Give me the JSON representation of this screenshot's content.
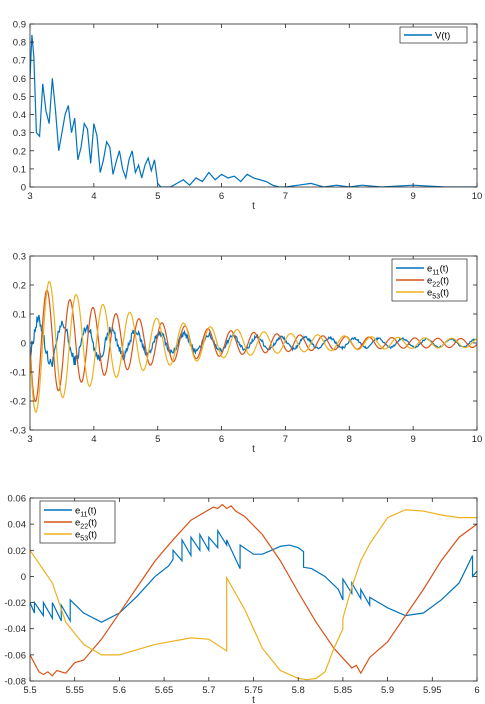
{
  "chart_data": [
    {
      "type": "line",
      "xlabel": "t",
      "ylabel": "",
      "xlim": [
        3,
        10
      ],
      "ylim": [
        0,
        0.9
      ],
      "xticks": [
        "3",
        "4",
        "5",
        "6",
        "7",
        "8",
        "9",
        "10"
      ],
      "yticks": [
        "0",
        "0.1",
        "0.2",
        "0.3",
        "0.4",
        "0.5",
        "0.6",
        "0.7",
        "0.8",
        "0.9"
      ],
      "legend_position": "top-right",
      "grid": false,
      "series": [
        {
          "name": "V(t)",
          "color": "#0072BD",
          "x": [
            3.0,
            3.03,
            3.06,
            3.1,
            3.15,
            3.2,
            3.25,
            3.3,
            3.35,
            3.4,
            3.45,
            3.5,
            3.55,
            3.6,
            3.65,
            3.7,
            3.75,
            3.8,
            3.85,
            3.9,
            3.95,
            4.0,
            4.05,
            4.1,
            4.15,
            4.2,
            4.25,
            4.3,
            4.35,
            4.4,
            4.45,
            4.5,
            4.55,
            4.6,
            4.65,
            4.7,
            4.75,
            4.8,
            4.85,
            4.9,
            4.95,
            5.0,
            5.05,
            5.1,
            5.2,
            5.3,
            5.4,
            5.5,
            5.6,
            5.7,
            5.8,
            5.9,
            6.0,
            6.1,
            6.2,
            6.3,
            6.4,
            6.5,
            6.6,
            6.7,
            6.8,
            6.9,
            7.0,
            7.2,
            7.4,
            7.6,
            7.8,
            8.0,
            8.2,
            8.5,
            9.0,
            9.5,
            10.0
          ],
          "y": [
            0.6,
            0.84,
            0.72,
            0.3,
            0.28,
            0.57,
            0.42,
            0.35,
            0.6,
            0.42,
            0.2,
            0.3,
            0.4,
            0.45,
            0.3,
            0.38,
            0.15,
            0.22,
            0.35,
            0.32,
            0.13,
            0.35,
            0.28,
            0.08,
            0.15,
            0.25,
            0.22,
            0.07,
            0.14,
            0.2,
            0.1,
            0.05,
            0.15,
            0.2,
            0.08,
            0.12,
            0.05,
            0.12,
            0.16,
            0.09,
            0.15,
            0.02,
            0.0,
            0.0,
            0.0,
            0.02,
            0.04,
            0.01,
            0.05,
            0.03,
            0.08,
            0.04,
            0.07,
            0.05,
            0.06,
            0.03,
            0.07,
            0.05,
            0.04,
            0.03,
            0.01,
            0.0,
            0.0,
            0.01,
            0.02,
            0.0,
            0.01,
            0.0,
            0.01,
            0.0,
            0.01,
            0.0,
            0.0
          ]
        }
      ]
    },
    {
      "type": "line",
      "xlabel": "t",
      "ylabel": "",
      "xlim": [
        3,
        10
      ],
      "ylim": [
        -0.3,
        0.3
      ],
      "xticks": [
        "3",
        "4",
        "5",
        "6",
        "7",
        "8",
        "9",
        "10"
      ],
      "yticks": [
        "-0.3",
        "-0.2",
        "-0.1",
        "0",
        "0.1",
        "0.2",
        "0.3"
      ],
      "legend_position": "top-right",
      "grid": false,
      "series": [
        {
          "name": "e11(t)",
          "label_main": "e",
          "label_sub": "11",
          "label_tail": "(t)",
          "color": "#0072BD",
          "amp": 0.07,
          "period": 0.38,
          "phase": 0.0,
          "decay": 0.55
        },
        {
          "name": "e22(t)",
          "label_main": "e",
          "label_sub": "22",
          "label_tail": "(t)",
          "color": "#D95319",
          "amp": 0.2,
          "period": 0.36,
          "phase": 1.1,
          "decay": 0.6
        },
        {
          "name": "e53(t)",
          "label_main": "e",
          "label_sub": "53",
          "label_tail": "(t)",
          "color": "#EDB120",
          "amp": 0.24,
          "period": 0.42,
          "phase": 2.4,
          "decay": 0.6
        }
      ]
    },
    {
      "type": "line",
      "xlabel": "t",
      "ylabel": "",
      "xlim": [
        5.5,
        6
      ],
      "ylim": [
        -0.08,
        0.06
      ],
      "xticks": [
        "5.5",
        "5.55",
        "5.6",
        "5.65",
        "5.7",
        "5.75",
        "5.8",
        "5.85",
        "5.9",
        "5.95",
        "6"
      ],
      "yticks": [
        "-0.08",
        "-0.06",
        "-0.04",
        "-0.02",
        "0",
        "0.02",
        "0.04",
        "0.06"
      ],
      "legend_position": "top-left",
      "grid": false,
      "series": [
        {
          "name": "e11(t)",
          "label_main": "e",
          "label_sub": "11",
          "label_tail": "(t)",
          "color": "#0072BD",
          "x": [
            5.5,
            5.505,
            5.505,
            5.515,
            5.515,
            5.525,
            5.525,
            5.535,
            5.535,
            5.545,
            5.545,
            5.56,
            5.58,
            5.6,
            5.62,
            5.64,
            5.655,
            5.66,
            5.66,
            5.67,
            5.67,
            5.68,
            5.68,
            5.69,
            5.69,
            5.7,
            5.7,
            5.71,
            5.71,
            5.72,
            5.72,
            5.735,
            5.735,
            5.75,
            5.76,
            5.77,
            5.78,
            5.79,
            5.8,
            5.806,
            5.806,
            5.815,
            5.83,
            5.845,
            5.85,
            5.85,
            5.86,
            5.86,
            5.87,
            5.87,
            5.88,
            5.88,
            5.9,
            5.92,
            5.94,
            5.96,
            5.98,
            5.995,
            5.995,
            6.0
          ],
          "y": [
            -0.02,
            -0.028,
            -0.02,
            -0.03,
            -0.02,
            -0.032,
            -0.02,
            -0.034,
            -0.022,
            -0.034,
            -0.018,
            -0.028,
            -0.035,
            -0.028,
            -0.015,
            0.0,
            0.008,
            0.013,
            0.02,
            0.012,
            0.028,
            0.016,
            0.03,
            0.02,
            0.032,
            0.02,
            0.03,
            0.022,
            0.035,
            0.024,
            0.028,
            0.006,
            0.024,
            0.017,
            0.017,
            0.02,
            0.023,
            0.024,
            0.022,
            0.019,
            0.007,
            0.006,
            0.0,
            -0.01,
            -0.018,
            -0.002,
            -0.013,
            -0.005,
            -0.017,
            -0.01,
            -0.022,
            -0.016,
            -0.024,
            -0.03,
            -0.028,
            -0.018,
            -0.005,
            0.016,
            0.0,
            0.004
          ]
        },
        {
          "name": "e22(t)",
          "label_main": "e",
          "label_sub": "22",
          "label_tail": "(t)",
          "color": "#D95319",
          "x": [
            5.5,
            5.51,
            5.515,
            5.52,
            5.525,
            5.53,
            5.54,
            5.55,
            5.56,
            5.58,
            5.6,
            5.62,
            5.64,
            5.66,
            5.68,
            5.7,
            5.705,
            5.71,
            5.715,
            5.72,
            5.725,
            5.73,
            5.74,
            5.76,
            5.78,
            5.8,
            5.82,
            5.84,
            5.86,
            5.865,
            5.87,
            5.875,
            5.88,
            5.9,
            5.92,
            5.94,
            5.96,
            5.98,
            6.0
          ],
          "y": [
            -0.06,
            -0.073,
            -0.075,
            -0.073,
            -0.076,
            -0.072,
            -0.074,
            -0.066,
            -0.064,
            -0.048,
            -0.028,
            -0.008,
            0.012,
            0.028,
            0.043,
            0.051,
            0.053,
            0.052,
            0.055,
            0.052,
            0.054,
            0.05,
            0.046,
            0.032,
            0.012,
            -0.012,
            -0.035,
            -0.055,
            -0.07,
            -0.068,
            -0.074,
            -0.068,
            -0.062,
            -0.05,
            -0.03,
            -0.01,
            0.012,
            0.03,
            0.04
          ]
        },
        {
          "name": "e53(t)",
          "label_main": "e",
          "label_sub": "53",
          "label_tail": "(t)",
          "color": "#EDB120",
          "x": [
            5.5,
            5.505,
            5.515,
            5.52,
            5.525,
            5.53,
            5.54,
            5.56,
            5.58,
            5.6,
            5.64,
            5.68,
            5.7,
            5.72,
            5.72,
            5.74,
            5.76,
            5.78,
            5.8,
            5.81,
            5.82,
            5.83,
            5.84,
            5.85,
            5.85,
            5.86,
            5.87,
            5.88,
            5.9,
            5.92,
            5.94,
            5.96,
            5.98,
            6.0
          ],
          "y": [
            0.02,
            0.015,
            0.005,
            0.0,
            -0.005,
            -0.015,
            -0.035,
            -0.052,
            -0.06,
            -0.06,
            -0.052,
            -0.047,
            -0.048,
            -0.057,
            -0.001,
            -0.025,
            -0.055,
            -0.072,
            -0.078,
            -0.079,
            -0.078,
            -0.073,
            -0.055,
            -0.04,
            -0.032,
            -0.008,
            0.012,
            0.025,
            0.045,
            0.051,
            0.05,
            0.047,
            0.045,
            0.045
          ]
        }
      ]
    }
  ]
}
